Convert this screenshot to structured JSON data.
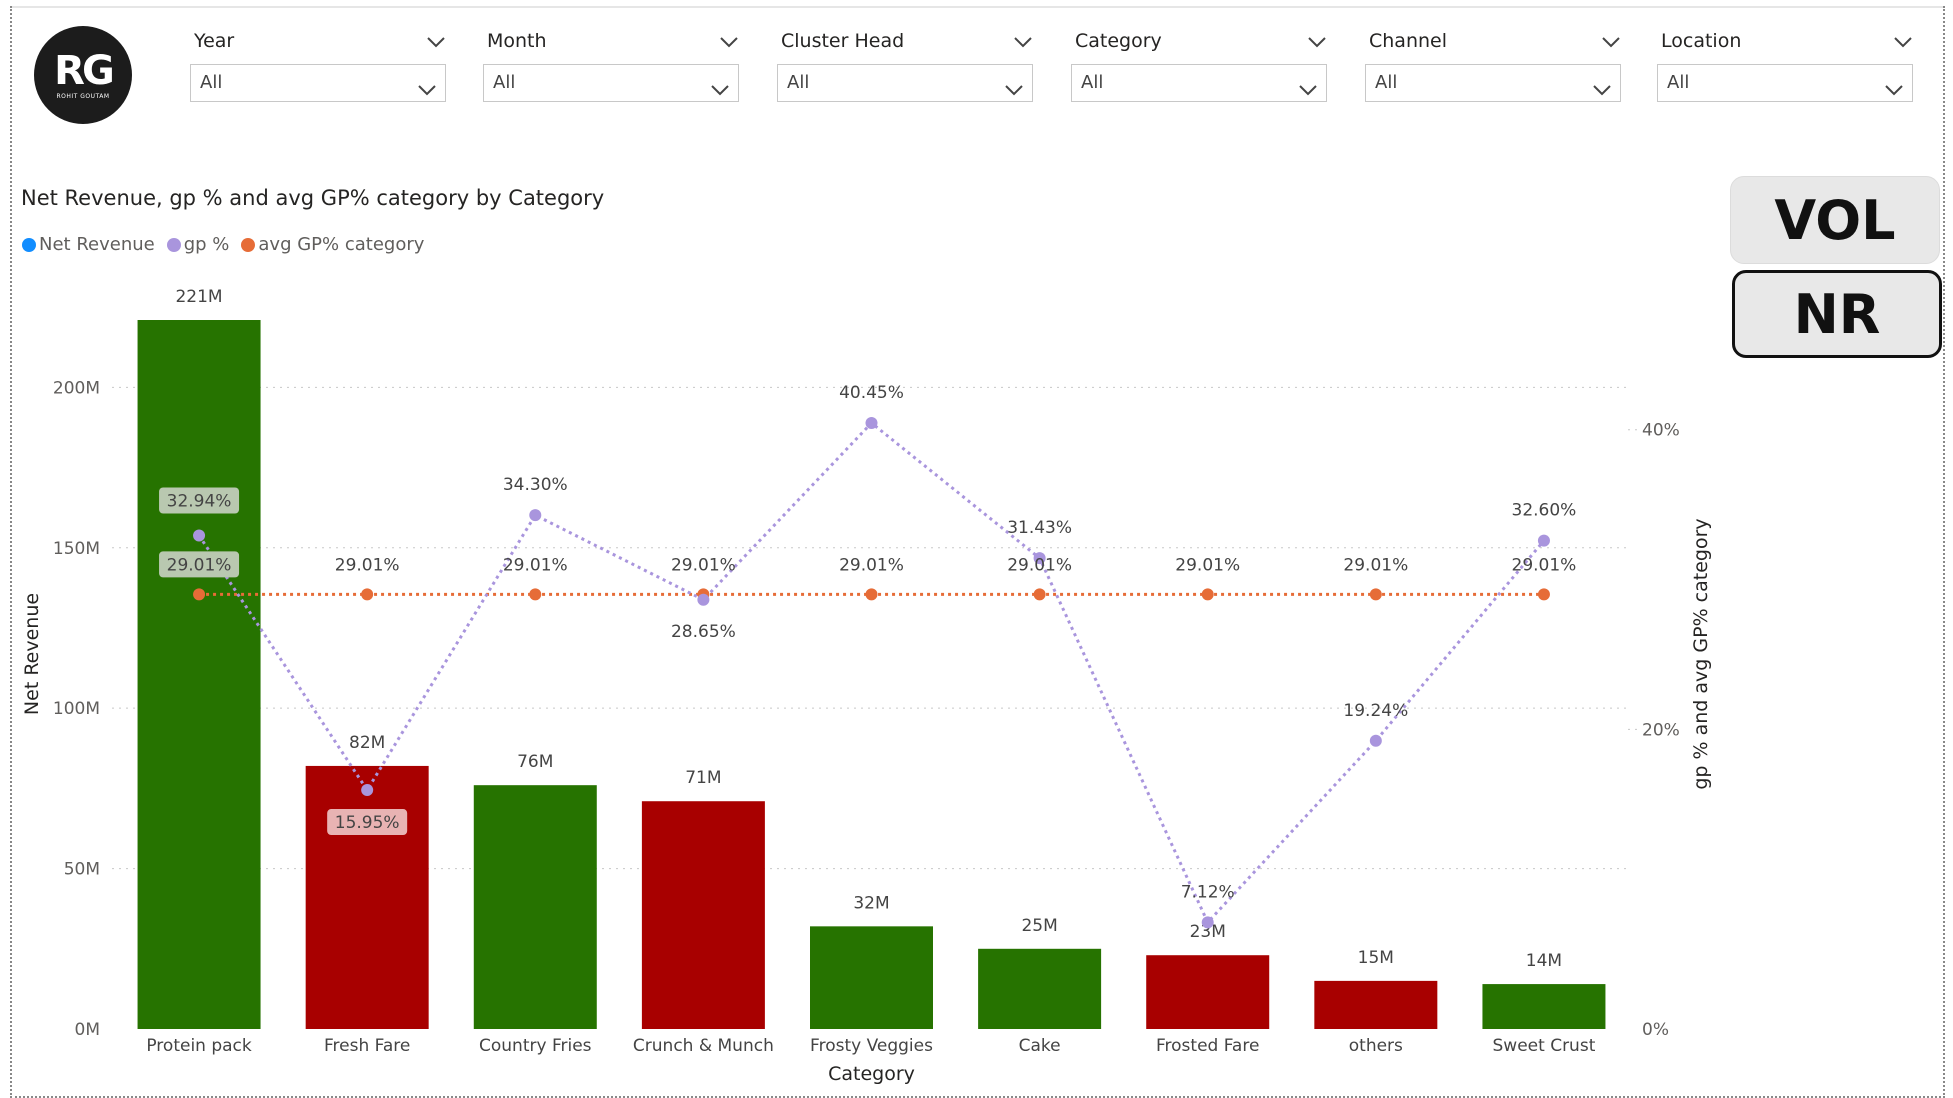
{
  "logo": {
    "mark": "RG",
    "sub": "ROHIT GOUTAM"
  },
  "slicers": [
    {
      "label": "Year",
      "value": "All"
    },
    {
      "label": "Month",
      "value": "All"
    },
    {
      "label": "Cluster Head",
      "value": "All"
    },
    {
      "label": "Category",
      "value": "All"
    },
    {
      "label": "Channel",
      "value": "All"
    },
    {
      "label": "Location",
      "value": "All"
    }
  ],
  "toggles": {
    "vol": "VOL",
    "nr": "NR"
  },
  "colors": {
    "positive": "#267300",
    "negative": "#a80000",
    "gp_line": "#a995dd",
    "avg_line": "#e66c37",
    "net_revenue_legend": "#118dff"
  },
  "chart_data": {
    "type": "bar",
    "title": "Net Revenue, gp % and avg GP% category by Category",
    "legend": [
      {
        "name": "Net Revenue",
        "color": "#118dff"
      },
      {
        "name": "gp %",
        "color": "#a995dd"
      },
      {
        "name": "avg GP% category",
        "color": "#e66c37"
      }
    ],
    "legend_position": "top-left",
    "xlabel": "Category",
    "ylabel": "Net Revenue",
    "y2label": "gp % and avg GP% category",
    "categories": [
      "Protein pack",
      "Fresh Fare",
      "Country Fries",
      "Crunch & Munch",
      "Frosty Veggies",
      "Cake",
      "Frosted Fare",
      "others",
      "Sweet Crust"
    ],
    "series": [
      {
        "name": "Net Revenue",
        "kind": "bar",
        "axis": "left",
        "values": [
          221,
          82,
          76,
          71,
          32,
          25,
          23,
          15,
          14
        ],
        "labels": [
          "221M",
          "82M",
          "76M",
          "71M",
          "32M",
          "25M",
          "23M",
          "15M",
          "14M"
        ],
        "bar_colors": [
          "#267300",
          "#a80000",
          "#267300",
          "#a80000",
          "#267300",
          "#267300",
          "#a80000",
          "#a80000",
          "#267300"
        ]
      },
      {
        "name": "gp %",
        "kind": "line",
        "axis": "right",
        "values": [
          32.94,
          15.95,
          34.3,
          28.65,
          40.45,
          31.43,
          7.12,
          19.24,
          32.6
        ],
        "labels": [
          "32.94%",
          "15.95%",
          "34.30%",
          "28.65%",
          "40.45%",
          "31.43%",
          "7.12%",
          "19.24%",
          "32.60%"
        ]
      },
      {
        "name": "avg GP% category",
        "kind": "line",
        "axis": "right",
        "values": [
          29.01,
          29.01,
          29.01,
          29.01,
          29.01,
          29.01,
          29.01,
          29.01,
          29.01
        ],
        "labels": [
          "29.01%",
          "29.01%",
          "29.01%",
          "29.01%",
          "29.01%",
          "29.01%",
          "29.01%",
          "29.01%",
          "29.01%"
        ]
      }
    ],
    "y_ticks": [
      "0M",
      "50M",
      "100M",
      "150M",
      "200M"
    ],
    "y_tick_values": [
      0,
      50,
      100,
      150,
      200
    ],
    "ylim": [
      0,
      221
    ],
    "y2_ticks": [
      "0%",
      "20%",
      "40%"
    ],
    "y2_tick_values": [
      0,
      20,
      40
    ],
    "y2lim": [
      0,
      40.45
    ],
    "grid": true
  }
}
